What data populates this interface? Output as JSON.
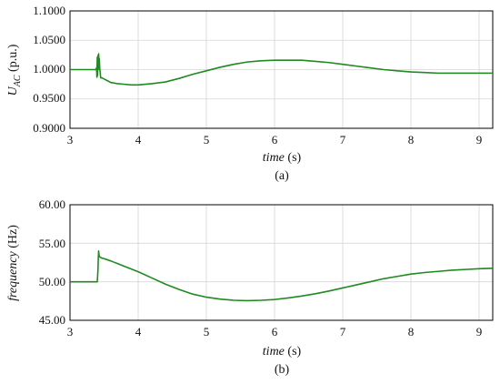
{
  "colors": {
    "line": "#1f8a1f",
    "grid": "#d6d6d6",
    "axis": "#000000"
  },
  "chart_data": [
    {
      "type": "line",
      "caption": "(a)",
      "xlabel_italic": "time",
      "xlabel_unit": "(s)",
      "ylabel_main": "U",
      "ylabel_sub": "AC",
      "ylabel_unit": "(p.u.)",
      "xlim": [
        3,
        9.2
      ],
      "ylim": [
        0.9,
        1.1
      ],
      "xticks": [
        "3",
        "4",
        "5",
        "6",
        "7",
        "8",
        "9"
      ],
      "yticks": [
        "0.9000",
        "0.9500",
        "1.0000",
        "1.0500",
        "1.1000"
      ],
      "grid": true,
      "series": [
        {
          "x": [
            3.0,
            3.38,
            3.39,
            3.395,
            3.4,
            3.405,
            3.41,
            3.415,
            3.42,
            3.425,
            3.43,
            3.435,
            3.44,
            3.45,
            3.47,
            3.5,
            3.55,
            3.6,
            3.7,
            3.8,
            3.9,
            4.0,
            4.2,
            4.4,
            4.6,
            4.8,
            5.0,
            5.2,
            5.4,
            5.6,
            5.8,
            6.0,
            6.2,
            6.3,
            6.4,
            6.6,
            6.8,
            7.0,
            7.2,
            7.4,
            7.6,
            7.8,
            8.0,
            8.2,
            8.4,
            8.6,
            8.8,
            9.0,
            9.2
          ],
          "y": [
            1.0,
            1.0,
            1.003,
            0.987,
            1.021,
            0.99,
            1.024,
            1.0,
            1.027,
            1.01,
            1.019,
            1.005,
            0.998,
            0.986,
            0.986,
            0.984,
            0.981,
            0.978,
            0.976,
            0.975,
            0.974,
            0.974,
            0.976,
            0.979,
            0.985,
            0.992,
            0.998,
            1.004,
            1.009,
            1.013,
            1.015,
            1.016,
            1.016,
            1.016,
            1.016,
            1.014,
            1.012,
            1.009,
            1.006,
            1.003,
            1.0,
            0.998,
            0.996,
            0.995,
            0.994,
            0.994,
            0.994,
            0.994,
            0.994
          ]
        }
      ]
    },
    {
      "type": "line",
      "caption": "(b)",
      "xlabel_italic": "time",
      "xlabel_unit": "(s)",
      "ylabel_italic": "frequency",
      "ylabel_unit": "(Hz)",
      "xlim": [
        3,
        9.2
      ],
      "ylim": [
        45,
        60
      ],
      "xticks": [
        "3",
        "4",
        "5",
        "6",
        "7",
        "8",
        "9"
      ],
      "yticks": [
        "45.00",
        "50.00",
        "55.00",
        "60.00"
      ],
      "grid": true,
      "series": [
        {
          "x": [
            3.0,
            3.4,
            3.41,
            3.415,
            3.42,
            3.425,
            3.43,
            3.44,
            3.46,
            3.5,
            3.6,
            3.8,
            4.0,
            4.2,
            4.4,
            4.6,
            4.8,
            5.0,
            5.2,
            5.4,
            5.6,
            5.8,
            6.0,
            6.2,
            6.4,
            6.6,
            6.8,
            7.0,
            7.2,
            7.4,
            7.6,
            7.8,
            8.0,
            8.2,
            8.4,
            8.6,
            8.8,
            9.0,
            9.2
          ],
          "y": [
            50.0,
            50.0,
            51.5,
            53.0,
            54.0,
            53.6,
            53.3,
            53.2,
            53.1,
            53.0,
            52.7,
            52.0,
            51.3,
            50.5,
            49.7,
            49.0,
            48.4,
            48.0,
            47.75,
            47.6,
            47.55,
            47.6,
            47.7,
            47.9,
            48.15,
            48.45,
            48.8,
            49.2,
            49.6,
            50.0,
            50.4,
            50.7,
            51.0,
            51.2,
            51.35,
            51.5,
            51.6,
            51.7,
            51.75
          ]
        }
      ]
    }
  ]
}
